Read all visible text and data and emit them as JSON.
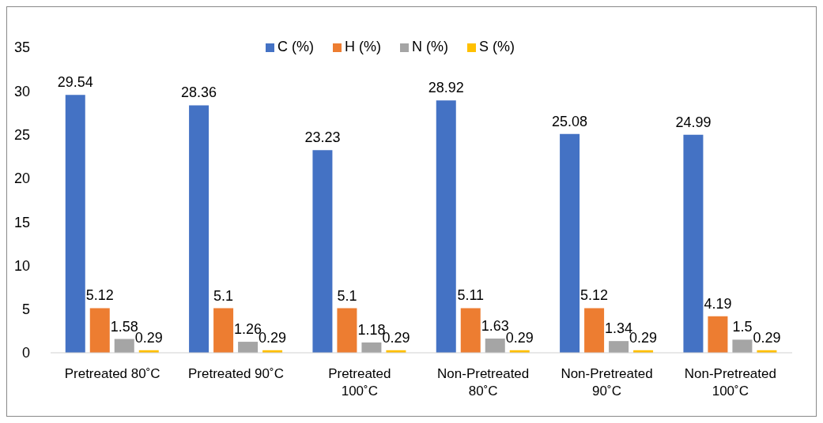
{
  "chart_data": {
    "type": "bar",
    "categories": [
      "Pretreated 80˚C",
      "Pretreated 90˚C",
      "Pretreated 100˚C",
      "Non-Pretreated 80˚C",
      "Non-Pretreated 90˚C",
      "Non-Pretreated 100˚C"
    ],
    "series": [
      {
        "name": "C (%)",
        "color": "#4472c4",
        "values": [
          29.54,
          28.36,
          23.23,
          28.92,
          25.08,
          24.99
        ]
      },
      {
        "name": "H (%)",
        "color": "#ed7d31",
        "values": [
          5.12,
          5.1,
          5.1,
          5.11,
          5.12,
          4.19
        ]
      },
      {
        "name": "N (%)",
        "color": "#a5a5a5",
        "values": [
          1.58,
          1.26,
          1.18,
          1.63,
          1.34,
          1.5
        ]
      },
      {
        "name": "S (%)",
        "color": "#ffc000",
        "values": [
          0.29,
          0.29,
          0.29,
          0.29,
          0.29,
          0.29
        ]
      }
    ],
    "ylim": [
      0,
      35
    ],
    "yticks": [
      0,
      5,
      10,
      15,
      20,
      25,
      30,
      35
    ],
    "data_labels": true,
    "grid": false,
    "legend": "top"
  }
}
